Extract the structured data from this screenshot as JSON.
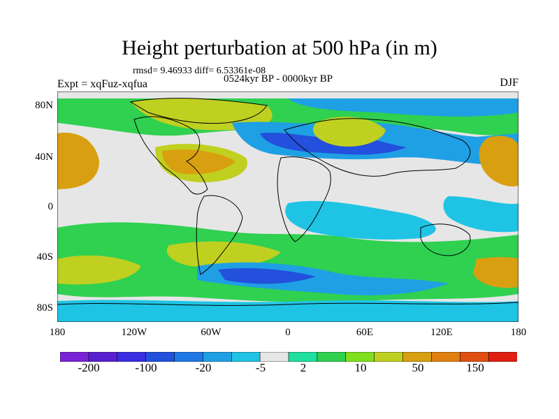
{
  "title": "Height perturbation at 500 hPa (in m)",
  "stats": "rmsd= 9.46933 diff= 6.53361e-08",
  "period": "0524kyr BP - 0000kyr BP",
  "experiment": "Expt = xqFuz-xqfua",
  "season": "DJF",
  "lat_ticks": [
    "80N",
    "40N",
    "0",
    "40S",
    "80S"
  ],
  "lon_ticks": [
    "180",
    "120W",
    "60W",
    "0",
    "60E",
    "120E",
    "180"
  ],
  "colorbar": {
    "colors": [
      "#7a22d8",
      "#5a1fd0",
      "#3a2ee0",
      "#2350dc",
      "#1f78e4",
      "#1fa0e4",
      "#1fc4e4",
      "#e6e6e6",
      "#20e0a0",
      "#30d050",
      "#80e020",
      "#c0d020",
      "#d8a010",
      "#e08010",
      "#e05010",
      "#e02010"
    ],
    "labels": [
      "-200",
      "-100",
      "-20",
      "-5",
      "2",
      "10",
      "50",
      "150"
    ]
  }
}
